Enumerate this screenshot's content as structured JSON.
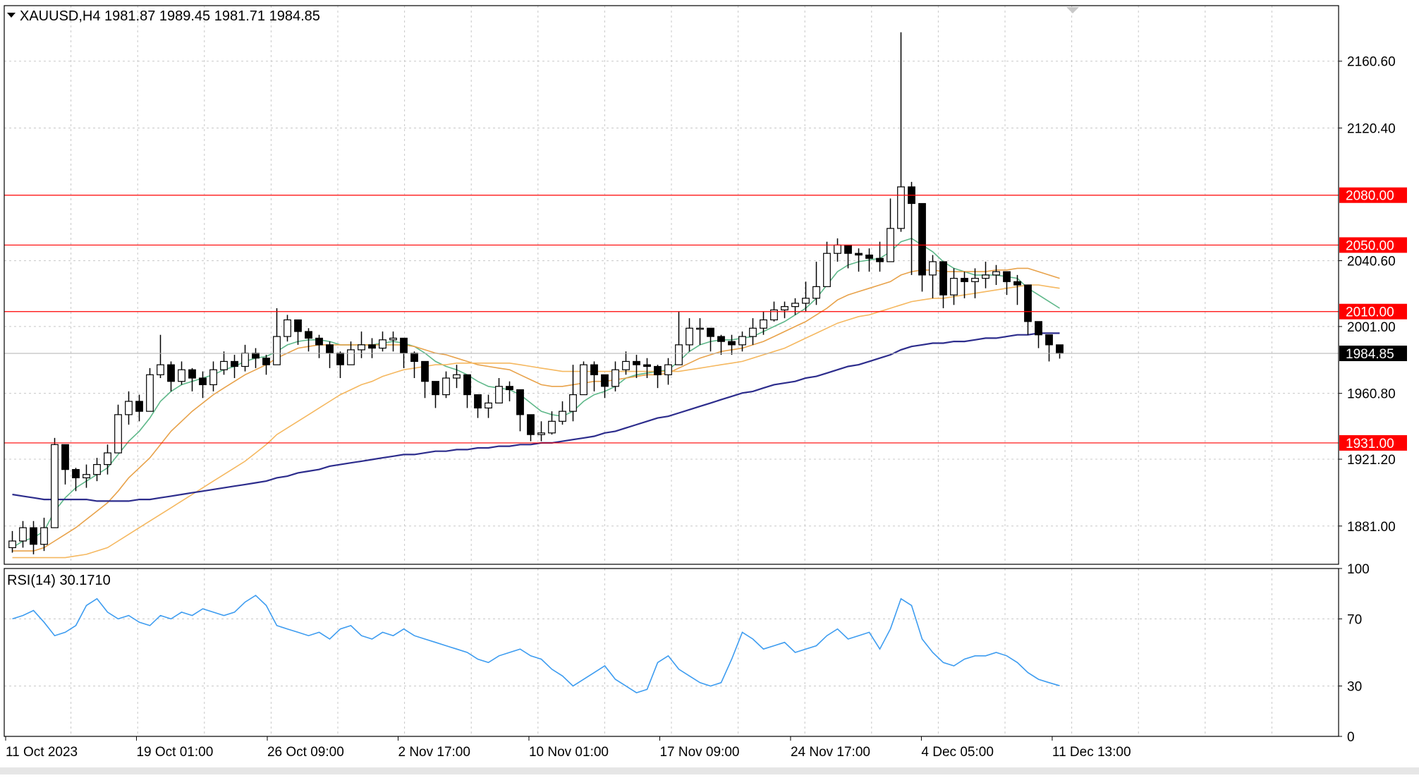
{
  "header": {
    "symbol_line": "XAUUSD,H4  1981.87 1989.45 1981.71 1984.85",
    "rsi_label": "RSI(14) 30.1710"
  },
  "colors": {
    "background": "#ffffff",
    "grid": "#c8c8c8",
    "candle": "#000000",
    "level_line": "#ff0000",
    "level_label_bg": "#ff0000",
    "current_label_bg": "#000000",
    "ma_fast": "#5fb88a",
    "ma_mid": "#e8a24a",
    "ma_slow_orange": "#f5b860",
    "ma_long": "#2c2c8c",
    "rsi_line": "#3d9cf0"
  },
  "chart_data": [
    {
      "type": "candlestick",
      "symbol": "XAUUSD",
      "timeframe": "H4",
      "ohlc_last": {
        "open": 1981.87,
        "high": 1989.45,
        "low": 1981.71,
        "close": 1984.85
      },
      "price_axis_ticks": [
        2160.6,
        2120.4,
        2040.6,
        2001.0,
        1960.8,
        1921.2,
        1881.0
      ],
      "price_axis_tick_labels": [
        "2160.60",
        "2120.40",
        "2040.60",
        "2001.00",
        "1960.80",
        "1921.20",
        "1881.00"
      ],
      "ylim": [
        1858,
        2194
      ],
      "time_axis_labels": [
        "11 Oct 2023",
        "19 Oct 01:00",
        "26 Oct 09:00",
        "2 Nov 17:00",
        "10 Nov 01:00",
        "17 Nov 09:00",
        "24 Nov 17:00",
        "4 Dec 05:00",
        "11 Dec 13:00"
      ],
      "horizontal_levels": [
        2080.0,
        2050.0,
        2010.0,
        1931.0
      ],
      "horizontal_level_labels": [
        "2080.00",
        "2050.00",
        "2010.00",
        "1931.00"
      ],
      "current_price": 1984.85,
      "current_price_label": "1984.85",
      "grid": true,
      "close_series": [
        1872,
        1880,
        1870,
        1880,
        1930,
        1915,
        1910,
        1912,
        1918,
        1925,
        1948,
        1956,
        1950,
        1972,
        1978,
        1968,
        1975,
        1970,
        1966,
        1975,
        1980,
        1977,
        1985,
        1982,
        1978,
        1995,
        2005,
        1998,
        1994,
        1990,
        1985,
        1978,
        1987,
        1990,
        1988,
        1993,
        1994,
        1985,
        1980,
        1968,
        1960,
        1970,
        1972,
        1960,
        1952,
        1955,
        1965,
        1963,
        1948,
        1936,
        1937,
        1944,
        1950,
        1960,
        1978,
        1972,
        1965,
        1975,
        1980,
        1978,
        1977,
        1972,
        1978,
        1990,
        2000,
        2000,
        1995,
        1992,
        1990,
        1995,
        2000,
        2005,
        2011,
        2013,
        2015,
        2018,
        2025,
        2045,
        2050,
        2045,
        2044,
        2042,
        2040,
        2060,
        2085,
        2075,
        2032,
        2040,
        2020,
        2030,
        2028,
        2030,
        2032,
        2034,
        2028,
        2026,
        2004,
        1996,
        1990,
        1984.85
      ],
      "high_series": [
        1878,
        1884,
        1884,
        1886,
        1934,
        1928,
        1916,
        1918,
        1922,
        1930,
        1954,
        1962,
        1960,
        1976,
        1996,
        1980,
        1980,
        1976,
        1974,
        1980,
        1986,
        1984,
        1990,
        1988,
        1984,
        2012,
        2008,
        2004,
        2000,
        1996,
        1992,
        1986,
        1992,
        1998,
        1994,
        1998,
        1998,
        1990,
        1986,
        1976,
        1968,
        1974,
        1978,
        1970,
        1958,
        1960,
        1970,
        1968,
        1954,
        1944,
        1944,
        1950,
        1956,
        1978,
        1980,
        1980,
        1972,
        1980,
        1986,
        1984,
        1982,
        1978,
        1982,
        2010,
        2006,
        2006,
        2000,
        1996,
        1996,
        1998,
        2006,
        2010,
        2016,
        2016,
        2018,
        2028,
        2040,
        2052,
        2054,
        2050,
        2048,
        2048,
        2052,
        2078,
        2178,
        2088,
        2055,
        2044,
        2034,
        2036,
        2034,
        2036,
        2040,
        2038,
        2034,
        2032,
        2014,
        2002,
        1996,
        1989.45
      ],
      "low_series": [
        1865,
        1868,
        1864,
        1866,
        1890,
        1906,
        1902,
        1904,
        1908,
        1912,
        1930,
        1942,
        1944,
        1950,
        1970,
        1962,
        1966,
        1962,
        1958,
        1962,
        1972,
        1970,
        1974,
        1976,
        1972,
        1980,
        1992,
        1990,
        1986,
        1982,
        1976,
        1970,
        1978,
        1982,
        1982,
        1986,
        1986,
        1976,
        1970,
        1958,
        1952,
        1958,
        1964,
        1952,
        1946,
        1946,
        1956,
        1956,
        1938,
        1932,
        1932,
        1936,
        1942,
        1944,
        1962,
        1962,
        1958,
        1962,
        1972,
        1970,
        1970,
        1964,
        1966,
        1978,
        1986,
        1990,
        1986,
        1984,
        1984,
        1986,
        1990,
        1996,
        2004,
        2006,
        2008,
        2010,
        2014,
        2026,
        2040,
        2036,
        2034,
        2034,
        2034,
        2040,
        2058,
        2032,
        2022,
        2018,
        2012,
        2014,
        2018,
        2018,
        2024,
        2026,
        2020,
        2014,
        1996,
        1988,
        1980,
        1981.71
      ],
      "moving_averages": [
        {
          "color_key": "ma_fast",
          "values": [
            1868,
            1872,
            1874,
            1878,
            1890,
            1898,
            1904,
            1908,
            1912,
            1916,
            1924,
            1932,
            1938,
            1946,
            1956,
            1962,
            1966,
            1968,
            1970,
            1972,
            1975,
            1977,
            1980,
            1982,
            1983,
            1986,
            1990,
            1992,
            1993,
            1993,
            1992,
            1990,
            1990,
            1990,
            1990,
            1991,
            1992,
            1991,
            1989,
            1985,
            1980,
            1977,
            1975,
            1972,
            1968,
            1965,
            1964,
            1963,
            1960,
            1955,
            1950,
            1948,
            1947,
            1950,
            1956,
            1960,
            1962,
            1965,
            1970,
            1972,
            1973,
            1974,
            1975,
            1980,
            1986,
            1990,
            1992,
            1993,
            1993,
            1994,
            1995,
            1998,
            2001,
            2004,
            2008,
            2012,
            2018,
            2026,
            2034,
            2038,
            2040,
            2041,
            2042,
            2046,
            2052,
            2054,
            2050,
            2046,
            2040,
            2036,
            2034,
            2032,
            2032,
            2032,
            2031,
            2030,
            2024,
            2020,
            2016,
            2012
          ]
        },
        {
          "color_key": "ma_mid",
          "values": [
            1866,
            1866,
            1866,
            1868,
            1872,
            1876,
            1880,
            1885,
            1890,
            1895,
            1902,
            1910,
            1916,
            1922,
            1930,
            1938,
            1944,
            1950,
            1955,
            1960,
            1964,
            1968,
            1972,
            1975,
            1978,
            1982,
            1985,
            1988,
            1989,
            1990,
            1990,
            1990,
            1990,
            1990,
            1990,
            1990,
            1990,
            1990,
            1989,
            1987,
            1985,
            1984,
            1982,
            1980,
            1978,
            1977,
            1976,
            1975,
            1972,
            1969,
            1966,
            1965,
            1965,
            1966,
            1967,
            1968,
            1968,
            1969,
            1970,
            1971,
            1972,
            1972,
            1973,
            1976,
            1979,
            1982,
            1984,
            1986,
            1987,
            1988,
            1990,
            1992,
            1995,
            1998,
            2001,
            2004,
            2008,
            2012,
            2017,
            2020,
            2022,
            2024,
            2026,
            2028,
            2032,
            2034,
            2035,
            2035,
            2034,
            2034,
            2034,
            2034,
            2034,
            2035,
            2035,
            2036,
            2036,
            2034,
            2032,
            2030
          ]
        },
        {
          "color_key": "ma_slow_orange",
          "values": [
            1862,
            1862,
            1862,
            1862,
            1862,
            1862,
            1863,
            1864,
            1866,
            1868,
            1872,
            1876,
            1880,
            1884,
            1888,
            1892,
            1896,
            1900,
            1904,
            1908,
            1912,
            1916,
            1920,
            1925,
            1930,
            1936,
            1940,
            1944,
            1948,
            1952,
            1956,
            1960,
            1963,
            1966,
            1968,
            1971,
            1973,
            1975,
            1976,
            1977,
            1978,
            1978,
            1979,
            1979,
            1979,
            1979,
            1979,
            1979,
            1978,
            1977,
            1976,
            1975,
            1974,
            1974,
            1974,
            1974,
            1974,
            1974,
            1974,
            1974,
            1974,
            1974,
            1974,
            1974,
            1975,
            1976,
            1977,
            1978,
            1979,
            1980,
            1982,
            1984,
            1986,
            1988,
            1991,
            1994,
            1997,
            2000,
            2003,
            2005,
            2007,
            2008,
            2010,
            2012,
            2014,
            2016,
            2017,
            2018,
            2018,
            2019,
            2020,
            2021,
            2022,
            2023,
            2024,
            2025,
            2026,
            2026,
            2025,
            2024
          ]
        },
        {
          "color_key": "ma_long",
          "values": [
            1900,
            1899,
            1898,
            1897,
            1897,
            1897,
            1897,
            1897,
            1896,
            1896,
            1896,
            1896,
            1897,
            1897,
            1898,
            1899,
            1900,
            1901,
            1902,
            1903,
            1904,
            1905,
            1906,
            1907,
            1908,
            1910,
            1911,
            1913,
            1914,
            1915,
            1917,
            1918,
            1919,
            1920,
            1921,
            1922,
            1923,
            1924,
            1924,
            1925,
            1926,
            1926,
            1927,
            1927,
            1928,
            1928,
            1929,
            1929,
            1930,
            1930,
            1931,
            1931,
            1932,
            1933,
            1934,
            1935,
            1937,
            1938,
            1940,
            1942,
            1944,
            1946,
            1947,
            1949,
            1951,
            1953,
            1955,
            1957,
            1959,
            1961,
            1962,
            1964,
            1966,
            1967,
            1968,
            1970,
            1971,
            1973,
            1975,
            1977,
            1978,
            1980,
            1982,
            1984,
            1987,
            1989,
            1990,
            1991,
            1991,
            1992,
            1992,
            1993,
            1994,
            1994,
            1995,
            1996,
            1996,
            1997,
            1997,
            1997
          ]
        }
      ]
    },
    {
      "type": "line",
      "name": "RSI(14)",
      "last_value": 30.171,
      "ylim": [
        0,
        100
      ],
      "axis_ticks": [
        100,
        70,
        30,
        0
      ],
      "axis_tick_labels": [
        "100",
        "70",
        "30",
        "0"
      ],
      "values": [
        70,
        72,
        75,
        68,
        60,
        62,
        66,
        78,
        82,
        74,
        70,
        72,
        68,
        66,
        72,
        70,
        74,
        72,
        76,
        74,
        72,
        74,
        80,
        84,
        78,
        66,
        64,
        62,
        60,
        62,
        58,
        64,
        66,
        60,
        58,
        62,
        60,
        64,
        60,
        58,
        56,
        54,
        52,
        50,
        46,
        44,
        48,
        50,
        52,
        48,
        46,
        40,
        36,
        30,
        34,
        38,
        42,
        34,
        30,
        26,
        28,
        44,
        48,
        40,
        36,
        32,
        30,
        32,
        46,
        62,
        58,
        52,
        54,
        56,
        50,
        52,
        54,
        60,
        64,
        58,
        60,
        62,
        52,
        64,
        82,
        78,
        58,
        50,
        44,
        42,
        46,
        48,
        48,
        50,
        48,
        44,
        38,
        34,
        32,
        30.171
      ]
    }
  ]
}
